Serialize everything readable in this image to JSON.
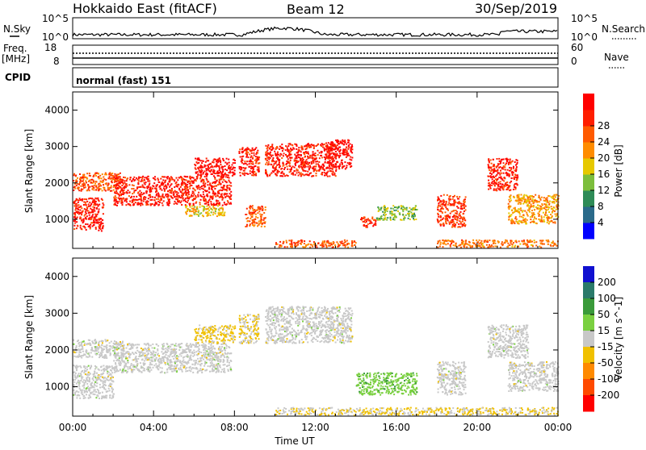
{
  "header": {
    "station": "Hokkaido East (fitACF)",
    "beam": "Beam 12",
    "date": "30/Sep/2019"
  },
  "strips": {
    "nsky_label": "N.Sky",
    "nsky_ticks": [
      "10^5",
      "10^0"
    ],
    "nsearch_label": "N.Search",
    "freq_label": "Freq.",
    "freq_unit": "[MHz]",
    "freq_ticks": [
      "18",
      "8"
    ],
    "nave_label": "Nave",
    "nave_ticks": [
      "60",
      "0"
    ],
    "cpid_label": "CPID",
    "cpid_value": "normal (fast) 151"
  },
  "colors": {
    "power": [
      "#0000ff",
      "#2a6a8a",
      "#2e8b57",
      "#7cbe3c",
      "#e6c800",
      "#ff8c00",
      "#ff5a00",
      "#ff1e00",
      "#ff0000"
    ],
    "velocity": [
      "#1010d0",
      "#2a7a6a",
      "#3a9a3a",
      "#7ad040",
      "#c8c8c8",
      "#f0c000",
      "#ff8a00",
      "#ff4a00",
      "#ff0000"
    ]
  },
  "chart_data": [
    {
      "type": "heatmap",
      "name": "power",
      "ylabel": "Slant Range [km]",
      "ylim": [
        200,
        4500
      ],
      "yticks": [
        "1000",
        "2000",
        "3000",
        "4000"
      ],
      "xticks": [
        "00:00",
        "04:00",
        "08:00",
        "12:00",
        "16:00",
        "20:00",
        "00:00"
      ],
      "colorbar": {
        "label": "Power [dB]",
        "ticks": [
          "4",
          "8",
          "12",
          "16",
          "20",
          "24",
          "28"
        ],
        "range": [
          0,
          30
        ]
      },
      "echo_regions": [
        {
          "t0": 0.0,
          "t1": 1.5,
          "r0": 700,
          "r1": 1600,
          "value": 26
        },
        {
          "t0": 0.0,
          "t1": 2.5,
          "r0": 1800,
          "r1": 2300,
          "value": 22
        },
        {
          "t0": 2.0,
          "t1": 7.8,
          "r0": 1400,
          "r1": 2200,
          "value": 26
        },
        {
          "t0": 6.0,
          "t1": 8.0,
          "r0": 2200,
          "r1": 2700,
          "value": 28
        },
        {
          "t0": 5.5,
          "t1": 7.5,
          "r0": 1100,
          "r1": 1400,
          "value": 16
        },
        {
          "t0": 8.2,
          "t1": 9.2,
          "r0": 2200,
          "r1": 3000,
          "value": 26
        },
        {
          "t0": 8.5,
          "t1": 9.5,
          "r0": 800,
          "r1": 1400,
          "value": 22
        },
        {
          "t0": 9.5,
          "t1": 13.0,
          "r0": 2200,
          "r1": 3100,
          "value": 26
        },
        {
          "t0": 12.5,
          "t1": 13.8,
          "r0": 2400,
          "r1": 3200,
          "value": 28
        },
        {
          "t0": 14.2,
          "t1": 15.0,
          "r0": 800,
          "r1": 1100,
          "value": 24
        },
        {
          "t0": 15.0,
          "t1": 17.0,
          "r0": 1000,
          "r1": 1400,
          "value": 12
        },
        {
          "t0": 18.0,
          "t1": 19.4,
          "r0": 800,
          "r1": 1700,
          "value": 24
        },
        {
          "t0": 20.5,
          "t1": 22.0,
          "r0": 1800,
          "r1": 2700,
          "value": 26
        },
        {
          "t0": 21.5,
          "t1": 24.0,
          "r0": 900,
          "r1": 1700,
          "value": 18
        },
        {
          "t0": 10.0,
          "t1": 14.0,
          "r0": 250,
          "r1": 450,
          "value": 22
        },
        {
          "t0": 18.0,
          "t1": 24.0,
          "r0": 250,
          "r1": 450,
          "value": 20
        }
      ]
    },
    {
      "type": "heatmap",
      "name": "velocity",
      "ylabel": "Slant Range [km]",
      "ylim": [
        200,
        4500
      ],
      "yticks": [
        "1000",
        "2000",
        "3000",
        "4000"
      ],
      "xticks": [
        "00:00",
        "04:00",
        "08:00",
        "12:00",
        "16:00",
        "20:00",
        "00:00"
      ],
      "xlabel": "Time UT",
      "colorbar": {
        "label": "Velocity [m s^-1]",
        "ticks": [
          "200",
          "100",
          "50",
          "15",
          "-15",
          "-50",
          "-100",
          "-200"
        ],
        "range": [
          -250,
          250
        ]
      },
      "echo_regions": [
        {
          "t0": 0.0,
          "t1": 2.0,
          "r0": 700,
          "r1": 1600,
          "value": 0
        },
        {
          "t0": 0.0,
          "t1": 2.5,
          "r0": 1800,
          "r1": 2300,
          "value": 0
        },
        {
          "t0": 2.0,
          "t1": 7.8,
          "r0": 1400,
          "r1": 2200,
          "value": 0
        },
        {
          "t0": 6.0,
          "t1": 8.0,
          "r0": 2200,
          "r1": 2700,
          "value": -40
        },
        {
          "t0": 8.2,
          "t1": 9.2,
          "r0": 2200,
          "r1": 3000,
          "value": -30
        },
        {
          "t0": 9.5,
          "t1": 13.8,
          "r0": 2200,
          "r1": 3200,
          "value": 0
        },
        {
          "t0": 14.0,
          "t1": 17.0,
          "r0": 800,
          "r1": 1400,
          "value": 60
        },
        {
          "t0": 18.0,
          "t1": 19.4,
          "r0": 800,
          "r1": 1700,
          "value": 0
        },
        {
          "t0": 20.5,
          "t1": 22.5,
          "r0": 1800,
          "r1": 2700,
          "value": 0
        },
        {
          "t0": 21.5,
          "t1": 24.0,
          "r0": 900,
          "r1": 1700,
          "value": 0
        },
        {
          "t0": 10.0,
          "t1": 24.0,
          "r0": 250,
          "r1": 450,
          "value": -30
        }
      ]
    }
  ]
}
